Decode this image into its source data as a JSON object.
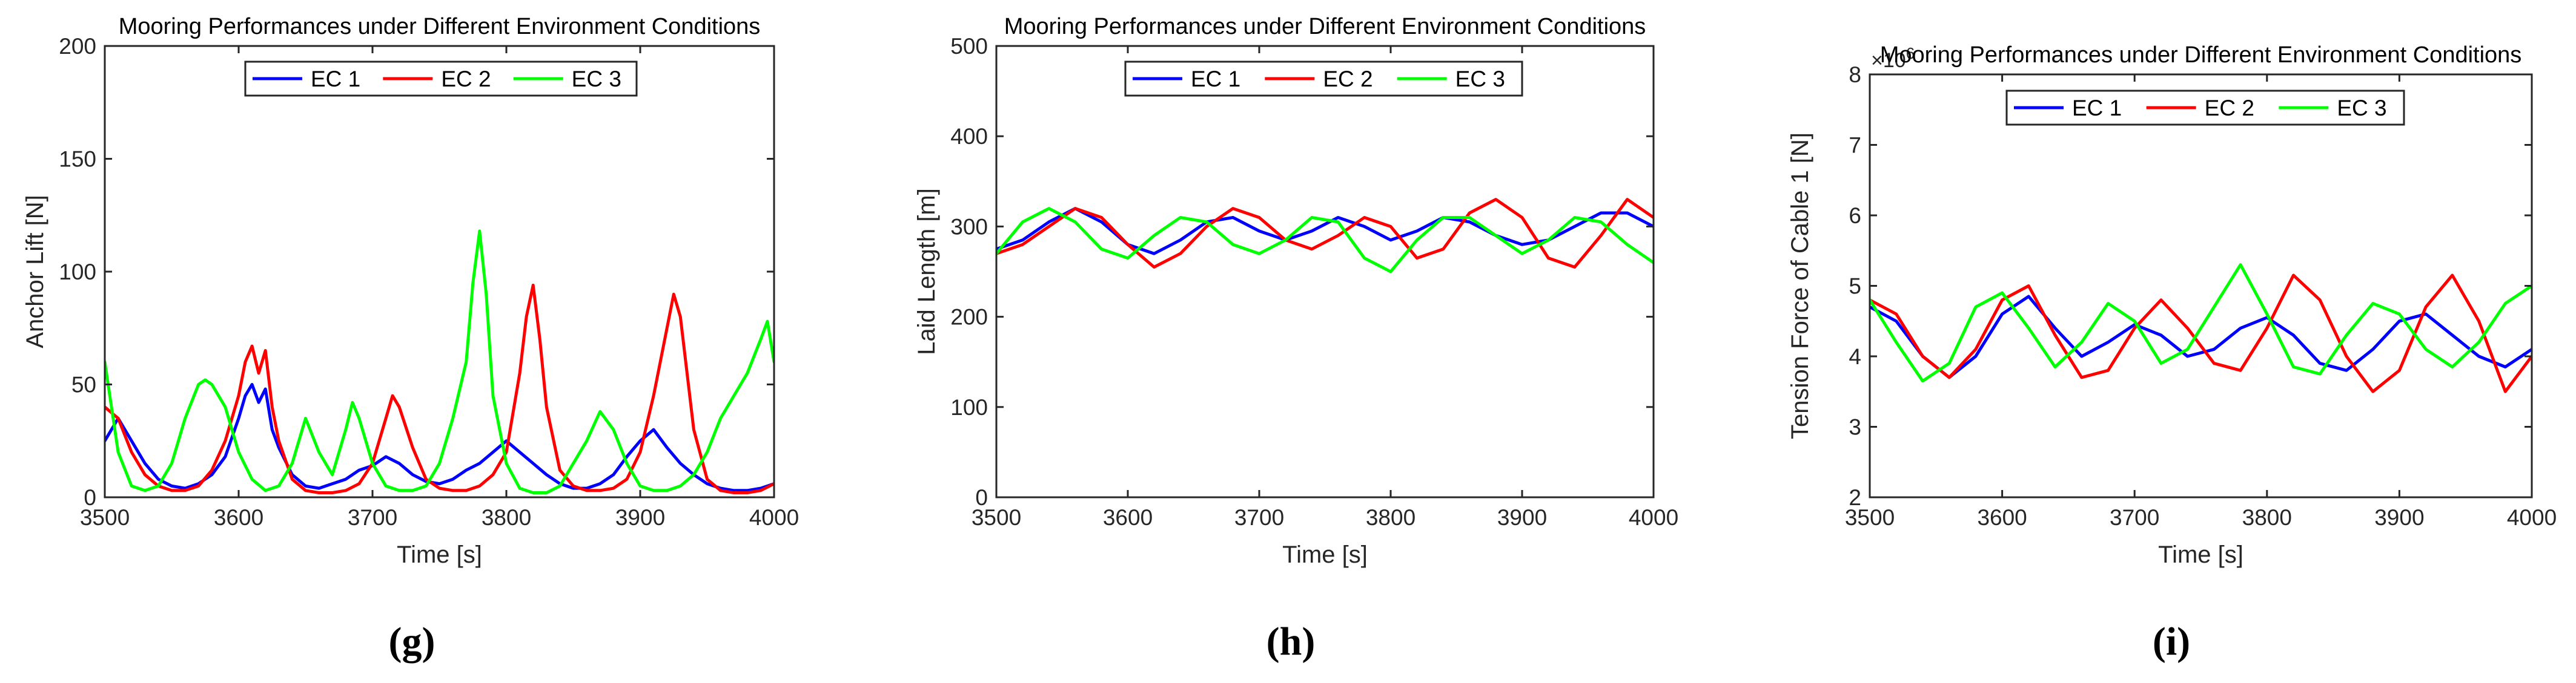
{
  "figure": {
    "captions": [
      "(g)",
      "(h)",
      "(i)"
    ]
  },
  "chart_data": [
    {
      "type": "line",
      "title": "Mooring Performances under Different Environment Conditions",
      "xlabel": "Time [s]",
      "ylabel": "Anchor Lift [N]",
      "xlim": [
        3500,
        4000
      ],
      "ylim": [
        0,
        200
      ],
      "xticks": [
        3500,
        3600,
        3700,
        3800,
        3900,
        4000
      ],
      "yticks": [
        0,
        50,
        100,
        150,
        200
      ],
      "exponent": "",
      "grid": false,
      "legend": "top-center",
      "series": [
        {
          "name": "EC 1",
          "color": "#0000ff",
          "x": [
            3500,
            3510,
            3520,
            3530,
            3540,
            3550,
            3560,
            3570,
            3580,
            3590,
            3600,
            3605,
            3610,
            3615,
            3620,
            3625,
            3630,
            3640,
            3650,
            3660,
            3670,
            3680,
            3690,
            3700,
            3710,
            3720,
            3730,
            3740,
            3750,
            3760,
            3770,
            3780,
            3790,
            3800,
            3810,
            3820,
            3830,
            3840,
            3850,
            3860,
            3870,
            3880,
            3890,
            3900,
            3910,
            3920,
            3930,
            3940,
            3950,
            3960,
            3970,
            3980,
            3990,
            4000
          ],
          "y": [
            25,
            35,
            25,
            15,
            8,
            5,
            4,
            6,
            10,
            18,
            35,
            45,
            50,
            42,
            48,
            30,
            22,
            10,
            5,
            4,
            6,
            8,
            12,
            14,
            18,
            15,
            10,
            7,
            6,
            8,
            12,
            15,
            20,
            25,
            20,
            15,
            10,
            6,
            4,
            4,
            6,
            10,
            18,
            25,
            30,
            22,
            15,
            10,
            6,
            4,
            3,
            3,
            4,
            6
          ]
        },
        {
          "name": "EC 2",
          "color": "#ff0000",
          "x": [
            3500,
            3510,
            3520,
            3530,
            3540,
            3550,
            3560,
            3570,
            3580,
            3590,
            3600,
            3605,
            3610,
            3615,
            3620,
            3625,
            3630,
            3640,
            3650,
            3660,
            3670,
            3680,
            3690,
            3700,
            3710,
            3715,
            3720,
            3730,
            3740,
            3750,
            3760,
            3770,
            3780,
            3790,
            3800,
            3810,
            3815,
            3820,
            3825,
            3830,
            3840,
            3850,
            3860,
            3870,
            3880,
            3890,
            3900,
            3910,
            3920,
            3925,
            3930,
            3940,
            3950,
            3960,
            3970,
            3980,
            3990,
            4000
          ],
          "y": [
            40,
            35,
            20,
            10,
            5,
            3,
            3,
            5,
            12,
            25,
            45,
            60,
            67,
            55,
            65,
            40,
            25,
            8,
            3,
            2,
            2,
            3,
            6,
            15,
            35,
            45,
            40,
            22,
            8,
            4,
            3,
            3,
            5,
            10,
            20,
            55,
            80,
            94,
            70,
            40,
            12,
            5,
            3,
            3,
            4,
            8,
            20,
            45,
            75,
            90,
            80,
            30,
            8,
            3,
            2,
            2,
            3,
            6
          ]
        },
        {
          "name": "EC 3",
          "color": "#00ff00",
          "x": [
            3500,
            3510,
            3520,
            3530,
            3540,
            3550,
            3560,
            3570,
            3575,
            3580,
            3590,
            3600,
            3610,
            3620,
            3630,
            3640,
            3650,
            3660,
            3670,
            3680,
            3685,
            3690,
            3700,
            3710,
            3720,
            3730,
            3740,
            3750,
            3760,
            3770,
            3775,
            3780,
            3785,
            3790,
            3800,
            3810,
            3820,
            3830,
            3840,
            3850,
            3860,
            3870,
            3880,
            3890,
            3900,
            3910,
            3920,
            3930,
            3940,
            3950,
            3960,
            3970,
            3980,
            3990,
            3995,
            4000
          ],
          "y": [
            60,
            20,
            5,
            3,
            5,
            15,
            35,
            50,
            52,
            50,
            40,
            20,
            8,
            3,
            5,
            15,
            35,
            20,
            10,
            30,
            42,
            35,
            15,
            5,
            3,
            3,
            5,
            15,
            35,
            60,
            95,
            118,
            90,
            45,
            15,
            4,
            2,
            2,
            5,
            15,
            25,
            38,
            30,
            15,
            5,
            3,
            3,
            5,
            10,
            20,
            35,
            45,
            55,
            70,
            78,
            60
          ]
        }
      ]
    },
    {
      "type": "line",
      "title": "Mooring Performances under Different Environment Conditions",
      "xlabel": "Time [s]",
      "ylabel": "Laid Length [m]",
      "xlim": [
        3500,
        4000
      ],
      "ylim": [
        0,
        500
      ],
      "xticks": [
        3500,
        3600,
        3700,
        3800,
        3900,
        4000
      ],
      "yticks": [
        0,
        100,
        200,
        300,
        400,
        500
      ],
      "exponent": "",
      "grid": false,
      "legend": "top-center",
      "series": [
        {
          "name": "EC 1",
          "color": "#0000ff",
          "x": [
            3500,
            3520,
            3540,
            3560,
            3580,
            3600,
            3620,
            3640,
            3660,
            3680,
            3700,
            3720,
            3740,
            3760,
            3780,
            3800,
            3820,
            3840,
            3860,
            3880,
            3900,
            3920,
            3940,
            3960,
            3980,
            4000
          ],
          "y": [
            275,
            285,
            305,
            320,
            305,
            280,
            270,
            285,
            305,
            310,
            295,
            285,
            295,
            310,
            300,
            285,
            295,
            310,
            305,
            290,
            280,
            285,
            300,
            315,
            315,
            300
          ]
        },
        {
          "name": "EC 2",
          "color": "#ff0000",
          "x": [
            3500,
            3520,
            3540,
            3560,
            3580,
            3600,
            3620,
            3640,
            3660,
            3680,
            3700,
            3720,
            3740,
            3760,
            3780,
            3800,
            3820,
            3840,
            3860,
            3880,
            3900,
            3920,
            3940,
            3960,
            3980,
            4000
          ],
          "y": [
            270,
            280,
            300,
            320,
            310,
            280,
            255,
            270,
            300,
            320,
            310,
            285,
            275,
            290,
            310,
            300,
            265,
            275,
            315,
            330,
            310,
            265,
            255,
            290,
            330,
            310
          ]
        },
        {
          "name": "EC 3",
          "color": "#00ff00",
          "x": [
            3500,
            3520,
            3540,
            3560,
            3580,
            3600,
            3620,
            3640,
            3660,
            3680,
            3700,
            3720,
            3740,
            3760,
            3780,
            3800,
            3820,
            3840,
            3860,
            3880,
            3900,
            3920,
            3940,
            3960,
            3980,
            4000
          ],
          "y": [
            270,
            305,
            320,
            305,
            275,
            265,
            290,
            310,
            305,
            280,
            270,
            285,
            310,
            305,
            265,
            250,
            285,
            310,
            310,
            290,
            270,
            285,
            310,
            305,
            280,
            260
          ]
        }
      ]
    },
    {
      "type": "line",
      "title": "Mooring Performances under Different Environment Conditions",
      "xlabel": "Time [s]",
      "ylabel": "Tension Force of Cable 1 [N]",
      "xlim": [
        3500,
        4000
      ],
      "ylim": [
        2,
        8
      ],
      "xticks": [
        3500,
        3600,
        3700,
        3800,
        3900,
        4000
      ],
      "yticks": [
        2,
        3,
        4,
        5,
        6,
        7,
        8
      ],
      "exponent": "6",
      "grid": false,
      "legend": "top-center",
      "series": [
        {
          "name": "EC 1",
          "color": "#0000ff",
          "x": [
            3500,
            3520,
            3540,
            3560,
            3580,
            3600,
            3620,
            3640,
            3660,
            3680,
            3700,
            3720,
            3740,
            3760,
            3780,
            3800,
            3820,
            3840,
            3860,
            3880,
            3900,
            3920,
            3940,
            3960,
            3980,
            4000
          ],
          "y": [
            4.7,
            4.5,
            4.0,
            3.7,
            4.0,
            4.6,
            4.85,
            4.4,
            4.0,
            4.2,
            4.45,
            4.3,
            4.0,
            4.1,
            4.4,
            4.55,
            4.3,
            3.9,
            3.8,
            4.1,
            4.5,
            4.6,
            4.3,
            4.0,
            3.85,
            4.1
          ]
        },
        {
          "name": "EC 2",
          "color": "#ff0000",
          "x": [
            3500,
            3520,
            3540,
            3560,
            3580,
            3600,
            3620,
            3640,
            3660,
            3680,
            3700,
            3720,
            3740,
            3760,
            3780,
            3800,
            3820,
            3840,
            3860,
            3880,
            3900,
            3920,
            3940,
            3960,
            3980,
            4000
          ],
          "y": [
            4.8,
            4.6,
            4.0,
            3.7,
            4.1,
            4.8,
            5.0,
            4.3,
            3.7,
            3.8,
            4.4,
            4.8,
            4.4,
            3.9,
            3.8,
            4.4,
            5.15,
            4.8,
            4.0,
            3.5,
            3.8,
            4.7,
            5.15,
            4.5,
            3.5,
            4.0
          ]
        },
        {
          "name": "EC 3",
          "color": "#00ff00",
          "x": [
            3500,
            3520,
            3540,
            3560,
            3580,
            3600,
            3620,
            3640,
            3660,
            3680,
            3700,
            3720,
            3740,
            3760,
            3780,
            3800,
            3820,
            3840,
            3860,
            3880,
            3900,
            3920,
            3940,
            3960,
            3980,
            4000
          ],
          "y": [
            4.8,
            4.2,
            3.65,
            3.9,
            4.7,
            4.9,
            4.4,
            3.85,
            4.2,
            4.75,
            4.5,
            3.9,
            4.1,
            4.7,
            5.3,
            4.6,
            3.85,
            3.75,
            4.3,
            4.75,
            4.6,
            4.1,
            3.85,
            4.2,
            4.75,
            5.0
          ]
        }
      ]
    }
  ]
}
